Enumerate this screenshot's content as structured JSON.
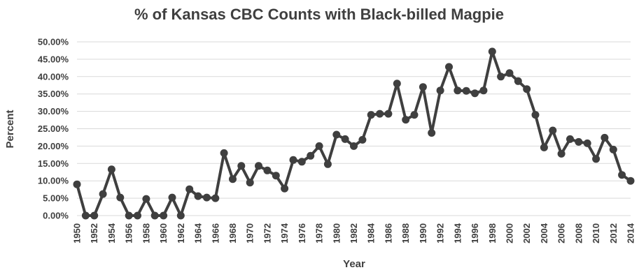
{
  "chart_data": {
    "type": "line",
    "title": "% of Kansas CBC Counts with Black-billed Magpie",
    "xlabel": "Year",
    "ylabel": "Percent",
    "ylim": [
      0,
      50
    ],
    "y_ticks": [
      "0.00%",
      "5.00%",
      "10.00%",
      "15.00%",
      "20.00%",
      "25.00%",
      "30.00%",
      "35.00%",
      "40.00%",
      "45.00%",
      "50.00%"
    ],
    "x_ticks": [
      "1950",
      "1952",
      "1954",
      "1956",
      "1958",
      "1960",
      "1962",
      "1964",
      "1966",
      "1968",
      "1970",
      "1972",
      "1974",
      "1976",
      "1978",
      "1980",
      "1982",
      "1984",
      "1986",
      "1988",
      "1990",
      "1992",
      "1994",
      "1996",
      "1998",
      "2000",
      "2002",
      "2004",
      "2006",
      "2008",
      "2010",
      "2012",
      "2014"
    ],
    "grid": true,
    "legend": "none",
    "color": "#3f3f3f",
    "x": [
      1950,
      1951,
      1952,
      1953,
      1954,
      1955,
      1956,
      1957,
      1958,
      1959,
      1960,
      1961,
      1962,
      1963,
      1964,
      1965,
      1966,
      1967,
      1968,
      1969,
      1970,
      1971,
      1972,
      1973,
      1974,
      1975,
      1976,
      1977,
      1978,
      1979,
      1980,
      1981,
      1982,
      1983,
      1984,
      1985,
      1986,
      1987,
      1988,
      1989,
      1990,
      1991,
      1992,
      1993,
      1994,
      1995,
      1996,
      1997,
      1998,
      1999,
      2000,
      2001,
      2002,
      2003,
      2004,
      2005,
      2006,
      2007,
      2008,
      2009,
      2010,
      2011,
      2012,
      2013,
      2014
    ],
    "series": [
      {
        "values": [
          9.0,
          0.0,
          0.0,
          6.2,
          13.3,
          5.2,
          0.0,
          0.0,
          4.8,
          0.0,
          0.0,
          5.2,
          0.0,
          7.6,
          5.6,
          5.2,
          5.0,
          18.0,
          10.5,
          14.3,
          9.5,
          14.3,
          13.0,
          11.5,
          7.8,
          16.0,
          15.5,
          17.2,
          20.0,
          14.8,
          23.3,
          22.0,
          20.0,
          21.8,
          29.0,
          29.3,
          29.3,
          38.0,
          27.6,
          29.0,
          37.0,
          23.8,
          36.0,
          42.8,
          36.0,
          35.9,
          35.2,
          36.0,
          47.2,
          40.0,
          41.0,
          38.7,
          36.4,
          29.0,
          19.6,
          24.5,
          17.8,
          22.0,
          21.2,
          20.8,
          16.3,
          22.4,
          19.0,
          11.7,
          10.0
        ]
      }
    ]
  }
}
